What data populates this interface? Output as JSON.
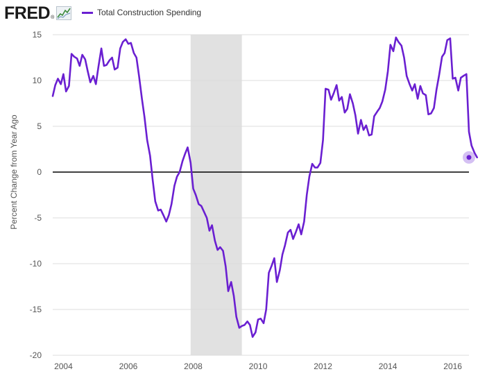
{
  "header": {
    "logo_text": "FRED",
    "logo_mark": "®",
    "logo_icon": "chart-line-icon"
  },
  "colors": {
    "series": "#6a1fd1",
    "recession": "#e1e1e1",
    "grid": "#dcdcdc",
    "zero_line": "#000000",
    "axis_text": "#555555",
    "marker_halo": "#c9b0f0"
  },
  "chart_data": {
    "type": "line",
    "title": "",
    "xlabel": "",
    "ylabel": "Percent Change from Year Ago",
    "xlim": [
      2003.67,
      2016.5
    ],
    "ylim": [
      -20,
      15
    ],
    "xticks": [
      2004,
      2006,
      2008,
      2010,
      2012,
      2014,
      2016
    ],
    "xtick_labels": [
      "2004",
      "2006",
      "2008",
      "2010",
      "2012",
      "2014",
      "2016"
    ],
    "yticks": [
      -20,
      -15,
      -10,
      -5,
      0,
      5,
      10,
      15
    ],
    "ytick_labels": [
      "-20",
      "-15",
      "-10",
      "-5",
      "0",
      "5",
      "10",
      "15"
    ],
    "grid": "horizontal",
    "legend_position": "top-left",
    "recession_shading": [
      [
        2007.92,
        2009.5
      ]
    ],
    "series": [
      {
        "name": "Total Construction Spending",
        "color": "#6a1fd1",
        "points": [
          [
            2003.67,
            8.3
          ],
          [
            2003.75,
            9.5
          ],
          [
            2003.83,
            10.2
          ],
          [
            2003.92,
            9.6
          ],
          [
            2004.0,
            10.7
          ],
          [
            2004.08,
            8.8
          ],
          [
            2004.17,
            9.4
          ],
          [
            2004.25,
            12.9
          ],
          [
            2004.33,
            12.6
          ],
          [
            2004.42,
            12.4
          ],
          [
            2004.5,
            11.6
          ],
          [
            2004.58,
            12.8
          ],
          [
            2004.67,
            12.3
          ],
          [
            2004.75,
            11.0
          ],
          [
            2004.83,
            9.8
          ],
          [
            2004.92,
            10.5
          ],
          [
            2005.0,
            9.6
          ],
          [
            2005.08,
            11.5
          ],
          [
            2005.17,
            13.5
          ],
          [
            2005.25,
            11.6
          ],
          [
            2005.33,
            11.7
          ],
          [
            2005.42,
            12.2
          ],
          [
            2005.5,
            12.5
          ],
          [
            2005.58,
            11.2
          ],
          [
            2005.67,
            11.4
          ],
          [
            2005.75,
            13.5
          ],
          [
            2005.83,
            14.2
          ],
          [
            2005.92,
            14.5
          ],
          [
            2006.0,
            14.0
          ],
          [
            2006.08,
            14.1
          ],
          [
            2006.17,
            13.0
          ],
          [
            2006.25,
            12.5
          ],
          [
            2006.33,
            10.5
          ],
          [
            2006.42,
            8.0
          ],
          [
            2006.5,
            6.0
          ],
          [
            2006.58,
            3.5
          ],
          [
            2006.67,
            1.8
          ],
          [
            2006.75,
            -0.8
          ],
          [
            2006.83,
            -3.2
          ],
          [
            2006.92,
            -4.2
          ],
          [
            2007.0,
            -4.1
          ],
          [
            2007.08,
            -4.7
          ],
          [
            2007.17,
            -5.4
          ],
          [
            2007.25,
            -4.7
          ],
          [
            2007.33,
            -3.5
          ],
          [
            2007.42,
            -1.5
          ],
          [
            2007.5,
            -0.5
          ],
          [
            2007.58,
            0.0
          ],
          [
            2007.67,
            1.2
          ],
          [
            2007.75,
            2.0
          ],
          [
            2007.83,
            2.7
          ],
          [
            2007.92,
            1.0
          ],
          [
            2008.0,
            -1.8
          ],
          [
            2008.08,
            -2.5
          ],
          [
            2008.17,
            -3.5
          ],
          [
            2008.25,
            -3.7
          ],
          [
            2008.33,
            -4.3
          ],
          [
            2008.42,
            -5.0
          ],
          [
            2008.5,
            -6.4
          ],
          [
            2008.58,
            -5.8
          ],
          [
            2008.67,
            -7.5
          ],
          [
            2008.75,
            -8.5
          ],
          [
            2008.83,
            -8.2
          ],
          [
            2008.92,
            -8.6
          ],
          [
            2009.0,
            -10.3
          ],
          [
            2009.08,
            -13.0
          ],
          [
            2009.17,
            -12.0
          ],
          [
            2009.25,
            -13.5
          ],
          [
            2009.33,
            -15.8
          ],
          [
            2009.42,
            -17.0
          ],
          [
            2009.5,
            -16.8
          ],
          [
            2009.58,
            -16.7
          ],
          [
            2009.67,
            -16.3
          ],
          [
            2009.75,
            -16.7
          ],
          [
            2009.83,
            -18.0
          ],
          [
            2009.92,
            -17.5
          ],
          [
            2010.0,
            -16.1
          ],
          [
            2010.08,
            -16.0
          ],
          [
            2010.17,
            -16.5
          ],
          [
            2010.25,
            -15.0
          ],
          [
            2010.33,
            -11.0
          ],
          [
            2010.42,
            -10.2
          ],
          [
            2010.5,
            -9.4
          ],
          [
            2010.58,
            -12.0
          ],
          [
            2010.67,
            -10.7
          ],
          [
            2010.75,
            -9.0
          ],
          [
            2010.83,
            -8.0
          ],
          [
            2010.92,
            -6.6
          ],
          [
            2011.0,
            -6.3
          ],
          [
            2011.08,
            -7.3
          ],
          [
            2011.17,
            -6.5
          ],
          [
            2011.25,
            -5.7
          ],
          [
            2011.33,
            -6.8
          ],
          [
            2011.42,
            -5.4
          ],
          [
            2011.5,
            -2.5
          ],
          [
            2011.58,
            -0.5
          ],
          [
            2011.67,
            0.9
          ],
          [
            2011.75,
            0.5
          ],
          [
            2011.83,
            0.5
          ],
          [
            2011.92,
            1.0
          ],
          [
            2012.0,
            3.5
          ],
          [
            2012.08,
            9.1
          ],
          [
            2012.17,
            9.0
          ],
          [
            2012.25,
            7.9
          ],
          [
            2012.33,
            8.6
          ],
          [
            2012.42,
            9.5
          ],
          [
            2012.5,
            7.8
          ],
          [
            2012.58,
            8.2
          ],
          [
            2012.67,
            6.5
          ],
          [
            2012.75,
            6.9
          ],
          [
            2012.83,
            8.5
          ],
          [
            2012.92,
            7.5
          ],
          [
            2013.0,
            6.2
          ],
          [
            2013.08,
            4.2
          ],
          [
            2013.17,
            5.7
          ],
          [
            2013.25,
            4.6
          ],
          [
            2013.33,
            5.1
          ],
          [
            2013.42,
            4.0
          ],
          [
            2013.5,
            4.1
          ],
          [
            2013.58,
            6.1
          ],
          [
            2013.67,
            6.6
          ],
          [
            2013.75,
            7.0
          ],
          [
            2013.83,
            7.7
          ],
          [
            2013.92,
            9.0
          ],
          [
            2014.0,
            11.0
          ],
          [
            2014.08,
            13.9
          ],
          [
            2014.17,
            13.2
          ],
          [
            2014.25,
            14.7
          ],
          [
            2014.33,
            14.2
          ],
          [
            2014.42,
            13.8
          ],
          [
            2014.5,
            12.5
          ],
          [
            2014.58,
            10.5
          ],
          [
            2014.67,
            9.6
          ],
          [
            2014.75,
            8.9
          ],
          [
            2014.83,
            9.6
          ],
          [
            2014.92,
            8.0
          ],
          [
            2015.0,
            9.4
          ],
          [
            2015.08,
            8.6
          ],
          [
            2015.17,
            8.4
          ],
          [
            2015.25,
            6.3
          ],
          [
            2015.33,
            6.4
          ],
          [
            2015.42,
            7.0
          ],
          [
            2015.5,
            9.0
          ],
          [
            2015.58,
            10.6
          ],
          [
            2015.67,
            12.6
          ],
          [
            2015.75,
            13.0
          ],
          [
            2015.83,
            14.4
          ],
          [
            2015.92,
            14.6
          ],
          [
            2016.0,
            10.2
          ],
          [
            2016.08,
            10.3
          ],
          [
            2016.17,
            8.9
          ],
          [
            2016.25,
            10.3
          ],
          [
            2016.33,
            10.5
          ],
          [
            2016.42,
            10.7
          ],
          [
            2016.5,
            4.4
          ],
          [
            2016.58,
            2.9
          ],
          [
            2016.67,
            2.1
          ],
          [
            2016.75,
            1.6
          ]
        ]
      }
    ]
  }
}
